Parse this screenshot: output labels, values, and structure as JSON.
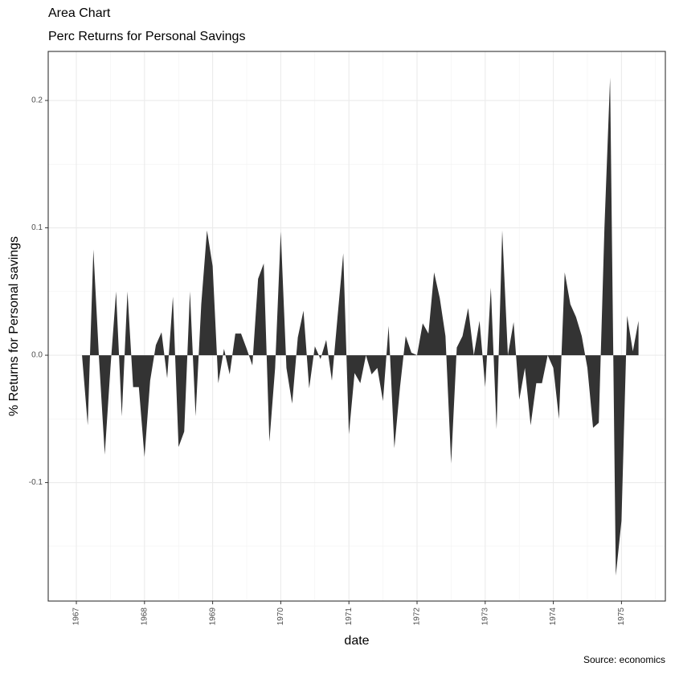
{
  "chart_data": {
    "type": "area",
    "title": "Area Chart",
    "subtitle": "Perc Returns for Personal Savings",
    "xlabel": "date",
    "ylabel": "% Returns for Personal savings",
    "caption": "Source: economics",
    "color": "#333333",
    "grid": true,
    "x": [
      1967.083,
      1967.167,
      1967.25,
      1967.333,
      1967.417,
      1967.5,
      1967.583,
      1967.667,
      1967.75,
      1967.833,
      1967.917,
      1968,
      1968.083,
      1968.167,
      1968.25,
      1968.333,
      1968.417,
      1968.5,
      1968.583,
      1968.667,
      1968.75,
      1968.833,
      1968.917,
      1969,
      1969.083,
      1969.167,
      1969.25,
      1969.333,
      1969.417,
      1969.5,
      1969.583,
      1969.667,
      1969.75,
      1969.833,
      1969.917,
      1970,
      1970.083,
      1970.167,
      1970.25,
      1970.333,
      1970.417,
      1970.5,
      1970.583,
      1970.667,
      1970.75,
      1970.833,
      1970.917,
      1971,
      1971.083,
      1971.167,
      1971.25,
      1971.333,
      1971.417,
      1971.5,
      1971.583,
      1971.667,
      1971.75,
      1971.833,
      1971.917,
      1972,
      1972.083,
      1972.167,
      1972.25,
      1972.333,
      1972.417,
      1972.5,
      1972.583,
      1972.667,
      1972.75,
      1972.833,
      1972.917,
      1973,
      1973.083,
      1973.167,
      1973.25,
      1973.333,
      1973.417,
      1973.5,
      1973.583,
      1973.667,
      1973.75,
      1973.833,
      1973.917,
      1974,
      1974.083,
      1974.167,
      1974.25,
      1974.333,
      1974.417,
      1974.5,
      1974.583,
      1974.667,
      1974.75,
      1974.833,
      1974.917,
      1975,
      1975.083,
      1975.167,
      1975.25
    ],
    "values": [
      0,
      -0.055,
      0.083,
      -0.003,
      -0.078,
      -0.01,
      0.05,
      -0.048,
      0.05,
      -0.025,
      -0.025,
      -0.08,
      -0.02,
      0.008,
      0.018,
      -0.018,
      0.046,
      -0.072,
      -0.06,
      0.05,
      -0.048,
      0.04,
      0.098,
      0.07,
      -0.022,
      0.005,
      -0.015,
      0.017,
      0.017,
      0.005,
      -0.008,
      0.06,
      0.072,
      -0.068,
      -0.01,
      0.097,
      -0.01,
      -0.038,
      0.014,
      0.035,
      -0.026,
      0.007,
      -0.003,
      0.012,
      -0.02,
      0.03,
      0.08,
      -0.062,
      -0.014,
      -0.022,
      0,
      -0.015,
      -0.01,
      -0.036,
      0.023,
      -0.073,
      -0.025,
      0.015,
      0.002,
      0,
      0.025,
      0.017,
      0.065,
      0.045,
      0.015,
      -0.085,
      0.006,
      0.015,
      0.037,
      0,
      0.027,
      -0.025,
      0.053,
      -0.058,
      0.098,
      0,
      0.026,
      -0.035,
      -0.01,
      -0.055,
      -0.022,
      -0.022,
      0,
      -0.01,
      -0.05,
      0.065,
      0.04,
      0.03,
      0.015,
      -0.01,
      -0.057,
      -0.053,
      0.1,
      0.218,
      -0.173,
      -0.13,
      0.031,
      0.003,
      0.027
    ],
    "xlim": [
      1966.587,
      1975.644
    ],
    "ylim": [
      -0.193,
      0.2385
    ],
    "xticks": [
      1967,
      1968,
      1969,
      1970,
      1971,
      1972,
      1973,
      1974,
      1975
    ],
    "yticks": [
      -0.1,
      {
        "value": 0,
        "label": "0.0"
      },
      0.1,
      0.2
    ],
    "xminor": [
      1966.5,
      1967.5,
      1968.5,
      1969.5,
      1970.5,
      1971.5,
      1972.5,
      1973.5,
      1974.5,
      1975.5
    ],
    "yminor": [
      -0.15,
      -0.05,
      0.05,
      0.15
    ]
  }
}
